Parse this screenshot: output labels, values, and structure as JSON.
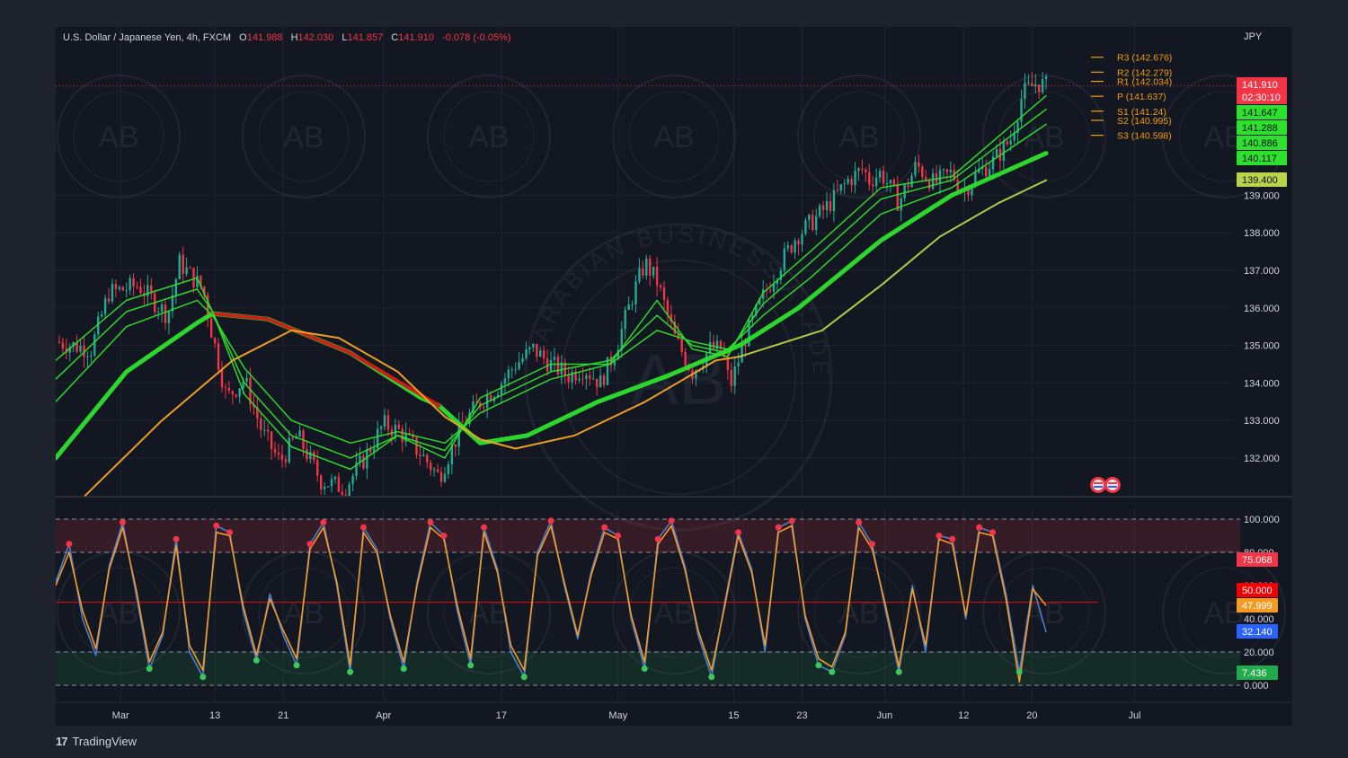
{
  "header": {
    "symbol_label": "U.S. Dollar / Japanese Yen, 4h, FXCM",
    "open_label": "O",
    "open": "141.988",
    "high_label": "H",
    "high": "142.030",
    "low_label": "L",
    "low": "141.857",
    "close_label": "C",
    "close": "141.910",
    "change": "-0.078 (-0.05%)",
    "currency": "JPY"
  },
  "colors": {
    "background": "#131722",
    "outer_background": "#1e222d",
    "grid": "#1f2431",
    "text": "#d1d4dc",
    "down_red": "#f23645",
    "up_green": "#22ab94",
    "ema_bright_green": "#2de02d",
    "ema_red": "#d01717",
    "sma_orange": "#f5a623",
    "sma_yellow_green": "#b9d34a",
    "pivot_orange": "#f39c12",
    "stoch_k_blue": "#4a7fd0",
    "stoch_d_orange": "#f59a23"
  },
  "pivots": [
    {
      "label": "R3 (142.676)",
      "value": 142.676
    },
    {
      "label": "R2 (142.279)",
      "value": 142.279
    },
    {
      "label": "R1 (142.034)",
      "value": 142.034
    },
    {
      "label": "P (141.637)",
      "value": 141.637
    },
    {
      "label": "S1 (141.24)",
      "value": 141.24
    },
    {
      "label": "S2 (140.995)",
      "value": 140.995
    },
    {
      "label": "S3 (140.598)",
      "value": 140.598
    }
  ],
  "price_badges": [
    {
      "text": "141.910",
      "value": 141.91,
      "color": "#f23645"
    },
    {
      "text": "02:30:10",
      "value": 141.51,
      "color": "#f23645"
    },
    {
      "text": "141.647",
      "value": 141.647,
      "color": "#2de02d"
    },
    {
      "text": "141.288",
      "value": 141.288,
      "color": "#2de02d"
    },
    {
      "text": "140.886",
      "value": 140.886,
      "color": "#2de02d"
    },
    {
      "text": "140.117",
      "value": 140.117,
      "color": "#2de02d"
    },
    {
      "text": "139.400",
      "value": 139.4,
      "color": "#b9d34a"
    }
  ],
  "stoch_badges": [
    {
      "text": "75.068",
      "value": 75.068,
      "color": "#f23645"
    },
    {
      "text": "50.000",
      "value": 50,
      "color": "#f50000"
    },
    {
      "text": "47.999",
      "value": 47.999,
      "color": "#f59a23"
    },
    {
      "text": "32.140",
      "value": 32.14,
      "color": "#2962ff"
    },
    {
      "text": "7.436",
      "value": 7.436,
      "color": "#22ab4a"
    }
  ],
  "watermark": {
    "monogram": "AB",
    "arc_text": "ARABIAN BUSINESS ACADEMY"
  },
  "branding": {
    "logo_text": "17",
    "name": "TradingView"
  },
  "chart_data": [
    {
      "type": "candlestick",
      "title": "U.S. Dollar / Japanese Yen, 4h, FXCM",
      "ylabel": "JPY",
      "ylim": [
        131.0,
        143.0
      ],
      "yticks": [
        132,
        133,
        134,
        135,
        136,
        137,
        138,
        139
      ],
      "ytick_labels": [
        "132.000",
        "133.000",
        "134.000",
        "135.000",
        "136.000",
        "137.000",
        "138.000",
        "139.000"
      ],
      "x_tick_labels": [
        "Mar",
        "13",
        "21",
        "Apr",
        "17",
        "May",
        "15",
        "23",
        "Jun",
        "12",
        "20",
        "Jul"
      ],
      "x_tick_positions": [
        0.055,
        0.135,
        0.193,
        0.278,
        0.378,
        0.477,
        0.575,
        0.633,
        0.703,
        0.77,
        0.828,
        0.915
      ],
      "last_bar_position": 0.84,
      "price_path": [
        [
          0.0,
          135.1
        ],
        [
          0.03,
          134.9
        ],
        [
          0.045,
          136.4
        ],
        [
          0.07,
          136.6
        ],
        [
          0.095,
          135.8
        ],
        [
          0.105,
          137.2
        ],
        [
          0.125,
          136.5
        ],
        [
          0.132,
          135.4
        ],
        [
          0.145,
          133.6
        ],
        [
          0.16,
          134.1
        ],
        [
          0.175,
          132.7
        ],
        [
          0.19,
          131.9
        ],
        [
          0.205,
          132.6
        ],
        [
          0.225,
          131.4
        ],
        [
          0.245,
          131.2
        ],
        [
          0.262,
          132.0
        ],
        [
          0.278,
          132.9
        ],
        [
          0.292,
          132.7
        ],
        [
          0.31,
          132.1
        ],
        [
          0.325,
          131.5
        ],
        [
          0.345,
          132.9
        ],
        [
          0.36,
          133.5
        ],
        [
          0.375,
          133.9
        ],
        [
          0.39,
          134.5
        ],
        [
          0.405,
          134.9
        ],
        [
          0.42,
          134.5
        ],
        [
          0.435,
          134.2
        ],
        [
          0.448,
          134.4
        ],
        [
          0.462,
          134.0
        ],
        [
          0.475,
          134.9
        ],
        [
          0.49,
          136.4
        ],
        [
          0.5,
          137.2
        ],
        [
          0.51,
          136.7
        ],
        [
          0.525,
          135.2
        ],
        [
          0.54,
          134.3
        ],
        [
          0.555,
          134.9
        ],
        [
          0.565,
          134.9
        ],
        [
          0.572,
          133.9
        ],
        [
          0.585,
          135.2
        ],
        [
          0.6,
          136.3
        ],
        [
          0.615,
          137.2
        ],
        [
          0.628,
          137.9
        ],
        [
          0.645,
          138.4
        ],
        [
          0.66,
          138.9
        ],
        [
          0.672,
          139.4
        ],
        [
          0.685,
          139.7
        ],
        [
          0.69,
          139.4
        ],
        [
          0.7,
          139.6
        ],
        [
          0.715,
          138.8
        ],
        [
          0.73,
          139.8
        ],
        [
          0.745,
          139.3
        ],
        [
          0.76,
          139.6
        ],
        [
          0.77,
          139.1
        ],
        [
          0.782,
          139.6
        ],
        [
          0.795,
          139.9
        ],
        [
          0.81,
          140.5
        ],
        [
          0.82,
          141.7
        ],
        [
          0.832,
          142.0
        ],
        [
          0.84,
          141.91
        ]
      ],
      "indicators": [
        {
          "name": "",
          "color": "#2de02d",
          "path": [
            [
              0.0,
              132.0
            ],
            [
              0.06,
              134.3
            ],
            [
              0.12,
              135.6
            ],
            [
              0.133,
              135.85
            ],
            [
              0.18,
              135.7
            ],
            [
              0.25,
              134.8
            ],
            [
              0.31,
              133.6
            ],
            [
              0.325,
              133.4
            ],
            [
              0.36,
              132.4
            ],
            [
              0.4,
              132.6
            ],
            [
              0.46,
              133.5
            ],
            [
              0.52,
              134.2
            ],
            [
              0.58,
              135.0
            ],
            [
              0.63,
              136.0
            ],
            [
              0.7,
              137.8
            ],
            [
              0.76,
              139.0
            ],
            [
              0.84,
              140.12
            ]
          ]
        },
        {
          "name": "",
          "color": "#d01717",
          "path": [
            [
              0.133,
              135.85
            ],
            [
              0.18,
              135.7
            ],
            [
              0.25,
              134.8
            ],
            [
              0.325,
              133.4
            ]
          ]
        },
        {
          "name": "",
          "color": "#2de02d",
          "path": [
            [
              0.0,
              133.5
            ],
            [
              0.06,
              135.5
            ],
            [
              0.12,
              136.2
            ],
            [
              0.133,
              135.8
            ],
            [
              0.16,
              134.4
            ],
            [
              0.2,
              133.0
            ],
            [
              0.25,
              132.4
            ],
            [
              0.29,
              132.7
            ],
            [
              0.33,
              132.4
            ],
            [
              0.36,
              133.2
            ],
            [
              0.42,
              134.1
            ],
            [
              0.47,
              134.5
            ],
            [
              0.51,
              135.4
            ],
            [
              0.54,
              135.1
            ],
            [
              0.57,
              134.9
            ],
            [
              0.6,
              135.8
            ],
            [
              0.64,
              136.8
            ],
            [
              0.7,
              138.5
            ],
            [
              0.76,
              139.2
            ],
            [
              0.84,
              140.89
            ]
          ]
        },
        {
          "name": "",
          "color": "#2de02d",
          "path": [
            [
              0.0,
              134.1
            ],
            [
              0.06,
              135.9
            ],
            [
              0.12,
              136.5
            ],
            [
              0.133,
              135.9
            ],
            [
              0.16,
              134.0
            ],
            [
              0.2,
              132.6
            ],
            [
              0.25,
              132.0
            ],
            [
              0.29,
              132.6
            ],
            [
              0.33,
              132.2
            ],
            [
              0.36,
              133.4
            ],
            [
              0.42,
              134.3
            ],
            [
              0.47,
              134.6
            ],
            [
              0.51,
              135.8
            ],
            [
              0.54,
              135.0
            ],
            [
              0.57,
              134.8
            ],
            [
              0.6,
              136.1
            ],
            [
              0.64,
              137.2
            ],
            [
              0.7,
              138.9
            ],
            [
              0.76,
              139.4
            ],
            [
              0.84,
              141.29
            ]
          ]
        },
        {
          "name": "",
          "color": "#2de02d",
          "path": [
            [
              0.0,
              134.6
            ],
            [
              0.06,
              136.2
            ],
            [
              0.12,
              136.8
            ],
            [
              0.133,
              135.9
            ],
            [
              0.16,
              133.7
            ],
            [
              0.2,
              132.3
            ],
            [
              0.25,
              131.7
            ],
            [
              0.29,
              132.6
            ],
            [
              0.33,
              132.0
            ],
            [
              0.36,
              133.6
            ],
            [
              0.42,
              134.5
            ],
            [
              0.47,
              134.5
            ],
            [
              0.51,
              136.2
            ],
            [
              0.54,
              134.9
            ],
            [
              0.57,
              134.7
            ],
            [
              0.6,
              136.4
            ],
            [
              0.64,
              137.5
            ],
            [
              0.7,
              139.2
            ],
            [
              0.76,
              139.5
            ],
            [
              0.84,
              141.65
            ]
          ]
        },
        {
          "name": "",
          "color": "#f5a623",
          "path": [
            [
              0.025,
              131.0
            ],
            [
              0.09,
              133.0
            ],
            [
              0.15,
              134.6
            ],
            [
              0.2,
              135.4
            ],
            [
              0.24,
              135.2
            ],
            [
              0.29,
              134.3
            ],
            [
              0.33,
              133.1
            ],
            [
              0.36,
              132.5
            ],
            [
              0.39,
              132.25
            ],
            [
              0.44,
              132.6
            ],
            [
              0.5,
              133.5
            ],
            [
              0.56,
              134.6
            ],
            [
              0.58,
              134.7
            ]
          ]
        },
        {
          "name": "",
          "color": "#b9d34a",
          "path": [
            [
              0.58,
              134.7
            ],
            [
              0.65,
              135.4
            ],
            [
              0.7,
              136.6
            ],
            [
              0.75,
              137.9
            ],
            [
              0.8,
              138.8
            ],
            [
              0.84,
              139.4
            ]
          ]
        }
      ]
    },
    {
      "type": "line",
      "title": "",
      "ylim": [
        0,
        100
      ],
      "yticks": [
        0,
        20,
        40,
        60,
        80,
        100
      ],
      "ytick_labels": [
        "0.000",
        "20.000",
        "40.000",
        "60.000",
        "80.000",
        "100.000"
      ],
      "overbought": 80,
      "oversold": 20,
      "midline": 50,
      "series": [
        {
          "name": "",
          "color": "#4a7fd0",
          "values": [
            62,
            85,
            40,
            18,
            72,
            98,
            55,
            10,
            30,
            88,
            20,
            5,
            96,
            92,
            45,
            15,
            55,
            30,
            12,
            85,
            98,
            60,
            8,
            95,
            82,
            40,
            10,
            62,
            98,
            90,
            45,
            12,
            95,
            70,
            20,
            5,
            80,
            99,
            60,
            28,
            68,
            95,
            90,
            40,
            10,
            88,
            99,
            72,
            30,
            5,
            50,
            92,
            70,
            20,
            95,
            99,
            40,
            12,
            8,
            30,
            98,
            85,
            45,
            8,
            60,
            20,
            90,
            88,
            40,
            95,
            92,
            55,
            8,
            60,
            32
          ]
        },
        {
          "name": "",
          "color": "#f59a23",
          "values": [
            60,
            80,
            45,
            22,
            70,
            95,
            58,
            14,
            32,
            84,
            24,
            9,
            92,
            90,
            48,
            18,
            52,
            33,
            16,
            82,
            95,
            62,
            12,
            92,
            80,
            42,
            14,
            60,
            95,
            88,
            48,
            16,
            92,
            68,
            24,
            9,
            78,
            96,
            62,
            30,
            66,
            92,
            88,
            42,
            14,
            85,
            96,
            70,
            33,
            9,
            48,
            90,
            68,
            24,
            92,
            96,
            42,
            16,
            11,
            32,
            95,
            82,
            48,
            11,
            58,
            24,
            88,
            85,
            42,
            92,
            90,
            52,
            2,
            58,
            48
          ]
        }
      ]
    }
  ]
}
